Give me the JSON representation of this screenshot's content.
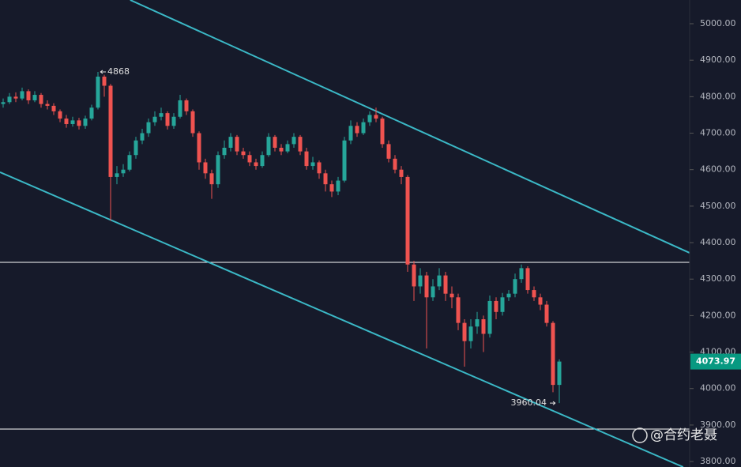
{
  "chart_data": {
    "type": "candlestick",
    "up_color": "#26a69a",
    "down_color": "#ef5350",
    "ylim": [
      3785,
      5065
    ],
    "yticks": [
      {
        "value": 3800,
        "label": "3800.00"
      },
      {
        "value": 3900,
        "label": "3900.00"
      },
      {
        "value": 4000,
        "label": "4000.00"
      },
      {
        "value": 4100,
        "label": "4100.00"
      },
      {
        "value": 4200,
        "label": "4200.00"
      },
      {
        "value": 4300,
        "label": "4300.00"
      },
      {
        "value": 4400,
        "label": "4400.00"
      },
      {
        "value": 4500,
        "label": "4500.00"
      },
      {
        "value": 4600,
        "label": "4600.00"
      },
      {
        "value": 4700,
        "label": "4700.00"
      },
      {
        "value": 4800,
        "label": "4800.00"
      },
      {
        "value": 4900,
        "label": "4900.00"
      },
      {
        "value": 5000,
        "label": "5000.00"
      }
    ],
    "open": [
      4780,
      4785,
      4800,
      4795,
      4815,
      4790,
      4805,
      4780,
      4775,
      4760,
      4740,
      4725,
      4735,
      4720,
      4740,
      4770,
      4855,
      4830,
      4580,
      4590,
      4600,
      4640,
      4680,
      4700,
      4730,
      4745,
      4755,
      4720,
      4745,
      4790,
      4760,
      4700,
      4620,
      4590,
      4560,
      4640,
      4660,
      4690,
      4650,
      4640,
      4620,
      4610,
      4640,
      4690,
      4660,
      4650,
      4670,
      4690,
      4650,
      4610,
      4620,
      4590,
      4560,
      4540,
      4570,
      4680,
      4720,
      4700,
      4730,
      4750,
      4740,
      4670,
      4630,
      4600,
      4580,
      4340,
      4280,
      4310,
      4250,
      4280,
      4310,
      4260,
      4250,
      4180,
      4130,
      4170,
      4190,
      4150,
      4240,
      4210,
      4250,
      4260,
      4300,
      4330,
      4270,
      4250,
      4230,
      4180,
      4010
    ],
    "high": [
      4795,
      4810,
      4812,
      4825,
      4820,
      4815,
      4810,
      4790,
      4782,
      4765,
      4750,
      4745,
      4742,
      4748,
      4778,
      4868,
      4860,
      4835,
      4610,
      4615,
      4650,
      4690,
      4712,
      4740,
      4760,
      4770,
      4760,
      4755,
      4805,
      4795,
      4765,
      4705,
      4630,
      4600,
      4650,
      4680,
      4700,
      4695,
      4660,
      4650,
      4630,
      4650,
      4700,
      4695,
      4670,
      4680,
      4700,
      4695,
      4660,
      4635,
      4625,
      4600,
      4570,
      4580,
      4690,
      4735,
      4730,
      4740,
      4760,
      4770,
      4745,
      4680,
      4640,
      4610,
      4585,
      4350,
      4330,
      4320,
      4300,
      4330,
      4320,
      4280,
      4260,
      4190,
      4190,
      4210,
      4200,
      4255,
      4250,
      4262,
      4270,
      4315,
      4340,
      4335,
      4280,
      4260,
      4240,
      4185,
      4080
    ],
    "low": [
      4770,
      4780,
      4785,
      4790,
      4780,
      4785,
      4770,
      4765,
      4750,
      4730,
      4715,
      4718,
      4710,
      4712,
      4735,
      4765,
      4800,
      4460,
      4560,
      4580,
      4595,
      4630,
      4670,
      4690,
      4720,
      4735,
      4710,
      4712,
      4740,
      4750,
      4690,
      4600,
      4575,
      4520,
      4550,
      4630,
      4650,
      4640,
      4630,
      4610,
      4600,
      4605,
      4635,
      4650,
      4640,
      4645,
      4660,
      4640,
      4600,
      4600,
      4575,
      4540,
      4525,
      4530,
      4565,
      4670,
      4690,
      4695,
      4720,
      4730,
      4660,
      4620,
      4590,
      4560,
      4320,
      4240,
      4260,
      4110,
      4240,
      4270,
      4240,
      4220,
      4160,
      4060,
      4110,
      4150,
      4100,
      4140,
      4190,
      4200,
      4240,
      4250,
      4290,
      4260,
      4240,
      4215,
      4170,
      3990,
      3960.04
    ],
    "close": [
      4785,
      4800,
      4795,
      4815,
      4790,
      4805,
      4780,
      4775,
      4760,
      4740,
      4725,
      4735,
      4720,
      4740,
      4770,
      4855,
      4830,
      4580,
      4590,
      4600,
      4640,
      4680,
      4700,
      4730,
      4745,
      4755,
      4720,
      4745,
      4790,
      4760,
      4700,
      4620,
      4590,
      4560,
      4640,
      4660,
      4690,
      4650,
      4640,
      4620,
      4610,
      4640,
      4690,
      4660,
      4650,
      4670,
      4690,
      4650,
      4610,
      4620,
      4590,
      4560,
      4540,
      4570,
      4680,
      4720,
      4700,
      4730,
      4750,
      4740,
      4670,
      4630,
      4600,
      4580,
      4340,
      4280,
      4310,
      4250,
      4280,
      4310,
      4260,
      4250,
      4180,
      4130,
      4170,
      4190,
      4150,
      4240,
      4210,
      4250,
      4260,
      4300,
      4330,
      4270,
      4250,
      4230,
      4180,
      4010,
      4073.97
    ],
    "trend_lines": [
      {
        "color": "#3bb8c6",
        "x": [
          20.1,
          108.6
        ],
        "y": [
          5065,
          4372
        ]
      },
      {
        "color": "#3bb8c6",
        "x": [
          -0.5,
          107.6
        ],
        "y": [
          4593,
          3785
        ]
      }
    ],
    "levels": [
      {
        "value": 4346,
        "color": "#ffffff"
      },
      {
        "value": 3889,
        "color": "#ffffff"
      }
    ],
    "annotations": [
      {
        "index": 15,
        "value": 4868,
        "label": "4868",
        "side": "right"
      },
      {
        "index": 88,
        "value": 3960.04,
        "label": "3960.04",
        "side": "left"
      }
    ],
    "last_price": {
      "value": 4073.97,
      "label": "4073.97",
      "color": "#089981"
    },
    "watermark": "@合约老聂"
  }
}
